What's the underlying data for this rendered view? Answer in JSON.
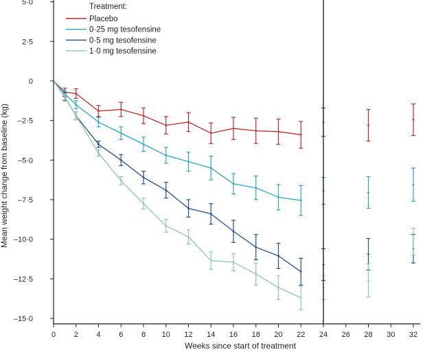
{
  "chart_data": {
    "type": "line",
    "title": "",
    "xlabel": "Weeks since start of treatment",
    "ylabel": "Mean weight change from baseline (kg)",
    "xlim": [
      0,
      32
    ],
    "ylim": [
      -15,
      5
    ],
    "x_ticks": [
      0,
      2,
      4,
      6,
      8,
      10,
      12,
      14,
      16,
      18,
      20,
      22,
      24,
      26,
      28,
      30,
      32
    ],
    "x_tick_labels": [
      "0",
      "2",
      "4",
      "6",
      "8",
      "10",
      "12",
      "14",
      "16",
      "18",
      "20",
      "22",
      "24",
      "26",
      "28",
      "30",
      "32"
    ],
    "y_ticks": [
      5,
      2.5,
      0,
      -2.5,
      -5,
      -7.5,
      -10,
      -12.5,
      -15
    ],
    "y_tick_labels": [
      "5·0",
      "2·5",
      "0",
      "–2·5",
      "–5·0",
      "–7·5",
      "–10·0",
      "–12·5",
      "–15·0"
    ],
    "divider_week": 24,
    "legend": {
      "title": "Treatment:",
      "placement": "top-left"
    },
    "grid": false,
    "series": [
      {
        "name": "Placebo",
        "color": "#c1272d",
        "x": [
          0,
          1,
          2,
          4,
          6,
          8,
          10,
          12,
          14,
          16,
          18,
          20,
          22
        ],
        "values": [
          0,
          -0.7,
          -0.8,
          -1.9,
          -1.8,
          -2.2,
          -2.8,
          -2.6,
          -3.3,
          -3.0,
          -3.15,
          -3.2,
          -3.4
        ],
        "errors": [
          0,
          0.25,
          0.3,
          0.35,
          0.45,
          0.5,
          0.55,
          0.6,
          0.65,
          0.7,
          0.8,
          0.8,
          0.85
        ],
        "extension_x": [
          24,
          28,
          32
        ],
        "extension_values": [
          -2.6,
          -2.8,
          -2.45
        ],
        "extension_errors": [
          0.9,
          1.0,
          1.0
        ]
      },
      {
        "name": "0·25 mg tesofensine",
        "color": "#2ba3c4",
        "x": [
          0,
          1,
          2,
          4,
          6,
          8,
          10,
          12,
          14,
          16,
          18,
          20,
          22
        ],
        "values": [
          0,
          -0.8,
          -1.5,
          -2.6,
          -3.3,
          -4.0,
          -4.7,
          -5.1,
          -5.5,
          -6.5,
          -6.75,
          -7.35,
          -7.55
        ],
        "errors": [
          0,
          0.2,
          0.25,
          0.3,
          0.4,
          0.45,
          0.5,
          0.6,
          0.75,
          0.65,
          0.75,
          0.8,
          0.95
        ],
        "extension_x": [
          24,
          28,
          32
        ],
        "extension_values": [
          -6.95,
          -7.05,
          -6.55
        ],
        "extension_errors": [
          0.85,
          1.0,
          1.05
        ]
      },
      {
        "name": "0·5 mg tesofensine",
        "color": "#1f4e8c",
        "x": [
          0,
          1,
          2,
          4,
          6,
          8,
          10,
          12,
          14,
          16,
          18,
          20,
          22
        ],
        "values": [
          0,
          -1.0,
          -2.2,
          -4.0,
          -5.0,
          -6.1,
          -6.9,
          -8.05,
          -8.4,
          -9.5,
          -10.5,
          -11.05,
          -12.05
        ],
        "errors": [
          0,
          0.25,
          0.25,
          0.2,
          0.35,
          0.4,
          0.5,
          0.55,
          0.65,
          0.7,
          0.8,
          0.8,
          0.85
        ],
        "extension_x": [
          24,
          28,
          32
        ],
        "extension_values": [
          -11.6,
          -10.95,
          -10.6
        ],
        "extension_errors": [
          1.0,
          1.0,
          0.9
        ]
      },
      {
        "name": "1·0 mg tesofensine",
        "color": "#8ec7a8",
        "x": [
          0,
          1,
          2,
          4,
          6,
          8,
          10,
          12,
          14,
          16,
          18,
          20,
          22
        ],
        "values": [
          0,
          -1.0,
          -2.2,
          -4.55,
          -6.3,
          -7.75,
          -9.15,
          -9.85,
          -11.35,
          -11.45,
          -12.2,
          -13.05,
          -13.7
        ],
        "errors": [
          0,
          0.2,
          0.25,
          0.2,
          0.25,
          0.35,
          0.4,
          0.45,
          0.55,
          0.55,
          0.7,
          0.75,
          0.75
        ],
        "extension_x": [
          24,
          28,
          32
        ],
        "extension_values": [
          -13.05,
          -12.6,
          -10.15
        ],
        "extension_errors": [
          0.75,
          1.05,
          0.85
        ]
      }
    ]
  }
}
